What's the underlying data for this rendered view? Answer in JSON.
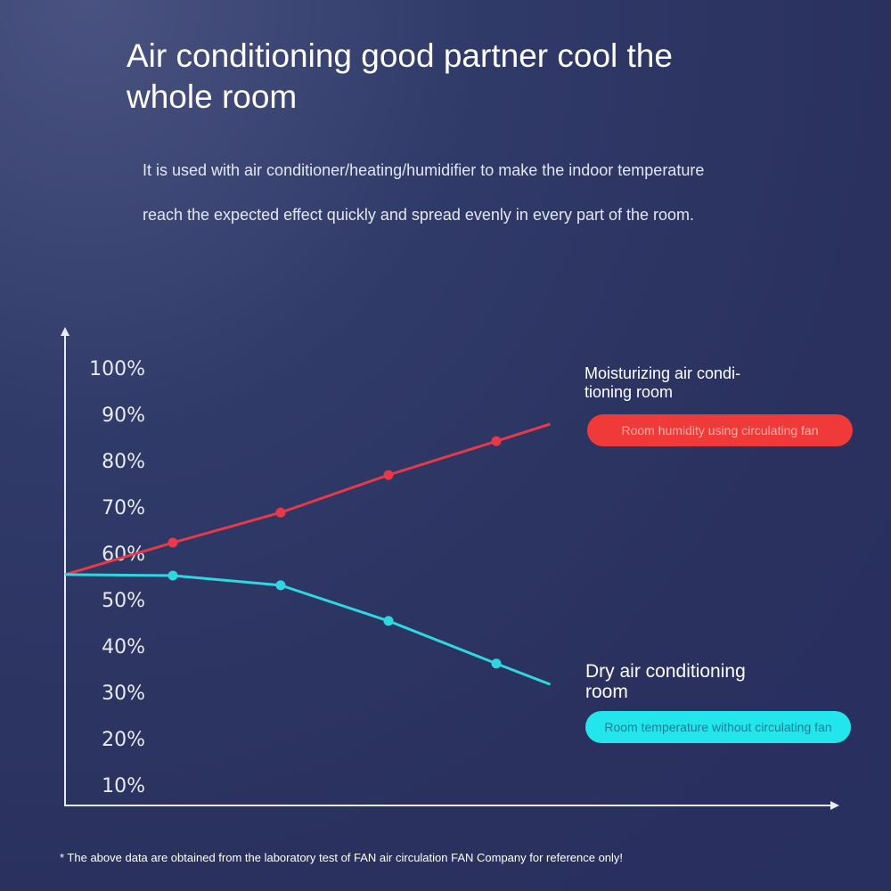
{
  "header": {
    "title": "Air conditioning good partner cool the whole room",
    "description_line1": "It is used with air conditioner/heating/humidifier to make the indoor temperature",
    "description_line2": "reach the expected effect quickly and spread evenly in every part of the room."
  },
  "legend": {
    "red_title": "Moisturizing air condi-\ntioning room",
    "red_pill": "Room humidity using circulating fan",
    "cyan_title": "Dry air conditioning\nroom",
    "cyan_pill": "Room temperature without circulating fan"
  },
  "footnote": "* The above data are obtained from the laboratory test of FAN air circulation FAN Company for reference only!",
  "colors": {
    "red": "#e8394a",
    "red_pill": "#f03a3a",
    "cyan": "#2fd8e0",
    "cyan_pill": "#22e6ec"
  },
  "chart_data": {
    "type": "line",
    "title": "",
    "xlabel": "",
    "ylabel": "",
    "y_ticks": [
      "100%",
      "90%",
      "80%",
      "70%",
      "60%",
      "50%",
      "40%",
      "30%",
      "20%",
      "10%"
    ],
    "y_tick_values": [
      100,
      90,
      80,
      70,
      60,
      50,
      40,
      30,
      20,
      10
    ],
    "ylim": [
      0,
      105
    ],
    "x": [
      0,
      1,
      2,
      3,
      4,
      4.5
    ],
    "grid": false,
    "series": [
      {
        "name": "Moisturizing air conditioning room",
        "color": "#e8394a",
        "values": [
          55.4,
          62.3,
          68.8,
          76.9,
          84.2,
          87.9
        ],
        "markers": [
          1,
          2,
          3,
          4
        ]
      },
      {
        "name": "Dry air conditioning room",
        "color": "#2fd8e0",
        "values": [
          55.4,
          55.2,
          53.1,
          45.4,
          36.2,
          31.7
        ],
        "markers": [
          1,
          2,
          3,
          4
        ]
      }
    ]
  }
}
